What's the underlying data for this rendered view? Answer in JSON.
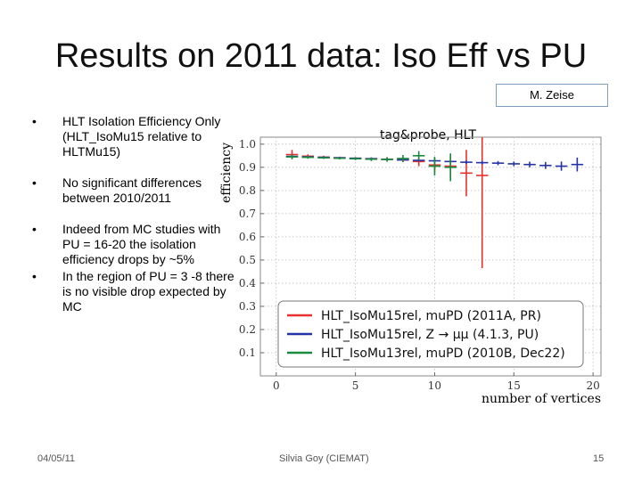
{
  "slide": {
    "title": "Results on 2011 data: Iso Eff vs PU",
    "author": "M. Zeise",
    "bullets": [
      "HLT Isolation Efficiency Only (HLT_IsoMu15 relative to HLTMu15)",
      "No significant differences between 2010/2011",
      "Indeed from MC studies with PU = 16-20 the isolation efficiency drops by ~5%",
      "In the region of PU = 3 -8 there is no visible drop expected by MC"
    ],
    "footer": {
      "date": "04/05/11",
      "presenter": "Silvia Goy (CIEMAT)",
      "page": "15"
    }
  },
  "chart_data": {
    "type": "scatter",
    "title": "tag&probe, HLT",
    "xlabel": "number of vertices",
    "ylabel": "efficiency",
    "xlim": [
      -1,
      20.5
    ],
    "ylim": [
      0.0,
      1.03
    ],
    "xticks": [
      0,
      5,
      10,
      15,
      20
    ],
    "yticks": [
      0.1,
      0.2,
      0.3,
      0.4,
      0.5,
      0.6,
      0.7,
      0.8,
      0.9,
      1.0
    ],
    "legend_position": "bottom-right",
    "series": [
      {
        "name": "HLT_IsoMu15rel, muPD (2011A, PR)",
        "color": "#e8312d",
        "x": [
          1,
          2,
          3,
          4,
          5,
          6,
          7,
          8,
          9,
          10,
          11,
          12,
          13
        ],
        "y": [
          0.955,
          0.948,
          0.944,
          0.941,
          0.939,
          0.937,
          0.935,
          0.932,
          0.925,
          0.91,
          0.905,
          0.875,
          0.865
        ],
        "yerr": [
          0.02,
          0.008,
          0.006,
          0.005,
          0.005,
          0.006,
          0.008,
          0.01,
          0.02,
          0.03,
          0.05,
          0.1,
          0.4
        ]
      },
      {
        "name": "HLT_IsoMu15rel, Z → μμ (4.1.3, PU)",
        "color": "#2334a8",
        "x": [
          1,
          2,
          3,
          4,
          5,
          6,
          7,
          8,
          9,
          10,
          11,
          12,
          13,
          14,
          15,
          16,
          17,
          18,
          19
        ],
        "y": [
          0.947,
          0.945,
          0.943,
          0.941,
          0.939,
          0.937,
          0.934,
          0.932,
          0.93,
          0.928,
          0.925,
          0.922,
          0.92,
          0.918,
          0.915,
          0.912,
          0.908,
          0.905,
          0.912
        ],
        "yerr": [
          0.006,
          0.004,
          0.004,
          0.004,
          0.004,
          0.004,
          0.004,
          0.004,
          0.005,
          0.005,
          0.006,
          0.007,
          0.008,
          0.009,
          0.01,
          0.012,
          0.015,
          0.02,
          0.03
        ]
      },
      {
        "name": "HLT_IsoMu13rel, muPD (2010B, Dec22)",
        "color": "#1a8a3c",
        "x": [
          1,
          2,
          3,
          4,
          5,
          6,
          7,
          8,
          9,
          10,
          11
        ],
        "y": [
          0.945,
          0.943,
          0.941,
          0.939,
          0.937,
          0.935,
          0.934,
          0.938,
          0.95,
          0.905,
          0.9
        ],
        "yerr": [
          0.01,
          0.006,
          0.005,
          0.005,
          0.006,
          0.008,
          0.01,
          0.015,
          0.02,
          0.04,
          0.06
        ]
      }
    ]
  }
}
